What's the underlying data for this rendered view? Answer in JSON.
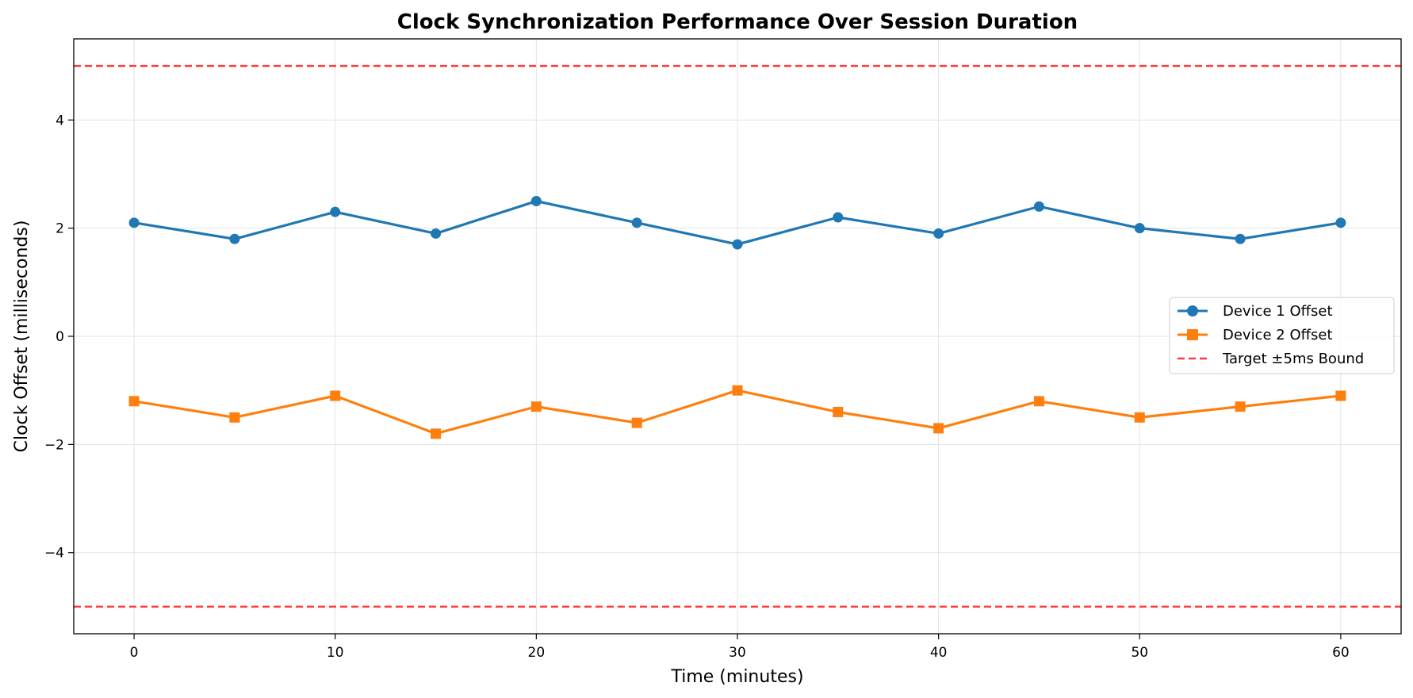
{
  "chart_data": {
    "type": "line",
    "title": "Clock Synchronization Performance Over Session Duration",
    "xlabel": "Time (minutes)",
    "ylabel": "Clock Offset (milliseconds)",
    "xlim": [
      -3,
      63
    ],
    "ylim": [
      -5.5,
      5.5
    ],
    "x_ticks": [
      0,
      10,
      20,
      30,
      40,
      50,
      60
    ],
    "y_ticks": [
      -4,
      -2,
      0,
      2,
      4
    ],
    "y_tick_labels": [
      "−4",
      "−2",
      "0",
      "2",
      "4"
    ],
    "grid": true,
    "legend_position": "center-right",
    "x": [
      0,
      5,
      10,
      15,
      20,
      25,
      30,
      35,
      40,
      45,
      50,
      55,
      60
    ],
    "series": [
      {
        "name": "Device 1 Offset",
        "marker": "circle",
        "color": "#1f77b4",
        "values": [
          2.1,
          1.8,
          2.3,
          1.9,
          2.5,
          2.1,
          1.7,
          2.2,
          1.9,
          2.4,
          2.0,
          1.8,
          2.1
        ]
      },
      {
        "name": "Device 2 Offset",
        "marker": "square",
        "color": "#ff7f0e",
        "values": [
          -1.2,
          -1.5,
          -1.1,
          -1.8,
          -1.3,
          -1.6,
          -1.0,
          -1.4,
          -1.7,
          -1.2,
          -1.5,
          -1.3,
          -1.1
        ]
      }
    ],
    "reference_lines": {
      "name": "Target ±5ms Bound",
      "values": [
        5,
        -5
      ],
      "style": "dashed",
      "color": "#ff3b3b"
    }
  }
}
